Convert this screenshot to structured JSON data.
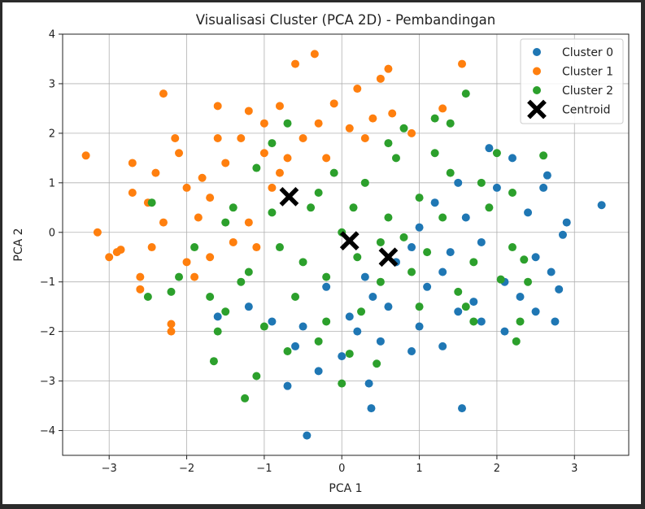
{
  "chart_data": {
    "type": "scatter",
    "title": "Visualisasi Cluster (PCA 2D) - Pembandingan",
    "xlabel": "PCA 1",
    "ylabel": "PCA 2",
    "xlim": [
      -3.6,
      3.7
    ],
    "ylim": [
      -4.5,
      4
    ],
    "xticks": [
      -3,
      -2,
      -1,
      0,
      1,
      2,
      3
    ],
    "yticks": [
      -4,
      -3,
      -2,
      -1,
      0,
      1,
      2,
      3,
      4
    ],
    "xtick_labels": [
      "−3",
      "−2",
      "−1",
      "0",
      "1",
      "2",
      "3"
    ],
    "ytick_labels": [
      "−4",
      "−3",
      "−2",
      "−1",
      "0",
      "1",
      "2",
      "3",
      "4"
    ],
    "grid": true,
    "legend_position": "top-right",
    "series": [
      {
        "name": "Cluster 0",
        "color": "#1f77b4",
        "points": [
          [
            0.7,
            -0.6
          ],
          [
            1.3,
            -0.8
          ],
          [
            1.8,
            -0.2
          ],
          [
            2.1,
            -1.0
          ],
          [
            2.5,
            -0.5
          ],
          [
            2.9,
            0.2
          ],
          [
            3.35,
            0.55
          ],
          [
            2.6,
            0.9
          ],
          [
            2.2,
            1.5
          ],
          [
            1.9,
            1.7
          ],
          [
            1.5,
            -1.6
          ],
          [
            1.0,
            -1.9
          ],
          [
            0.5,
            -2.2
          ],
          [
            0.0,
            -2.5
          ],
          [
            -0.3,
            -2.8
          ],
          [
            -0.7,
            -3.1
          ],
          [
            0.35,
            -3.05
          ],
          [
            0.38,
            -3.55
          ],
          [
            1.55,
            -3.55
          ],
          [
            -0.45,
            -4.1
          ],
          [
            -0.9,
            -1.8
          ],
          [
            -1.2,
            -1.5
          ],
          [
            -1.6,
            -1.7
          ],
          [
            2.7,
            -0.8
          ],
          [
            2.8,
            -1.15
          ],
          [
            2.75,
            -1.8
          ],
          [
            2.1,
            -2.0
          ],
          [
            1.3,
            -2.3
          ],
          [
            0.9,
            -2.4
          ],
          [
            2.4,
            0.4
          ],
          [
            2.0,
            0.9
          ],
          [
            1.6,
            0.3
          ],
          [
            1.2,
            0.6
          ],
          [
            0.9,
            -0.3
          ],
          [
            0.4,
            -1.3
          ],
          [
            0.1,
            -1.7
          ],
          [
            -0.2,
            -1.1
          ],
          [
            1.7,
            -1.4
          ],
          [
            2.3,
            -1.3
          ],
          [
            1.1,
            -1.1
          ],
          [
            0.6,
            -1.5
          ],
          [
            1.4,
            -0.4
          ],
          [
            2.65,
            1.15
          ],
          [
            2.85,
            -0.05
          ],
          [
            -0.5,
            -1.9
          ],
          [
            0.2,
            -2.0
          ],
          [
            1.8,
            -1.8
          ],
          [
            2.5,
            -1.6
          ],
          [
            1.0,
            0.1
          ],
          [
            1.5,
            1.0
          ],
          [
            0.3,
            -0.9
          ],
          [
            -0.6,
            -2.3
          ]
        ]
      },
      {
        "name": "Cluster 1",
        "color": "#ff7f0e",
        "points": [
          [
            -3.3,
            1.55
          ],
          [
            -3.15,
            0.0
          ],
          [
            -3.0,
            -0.5
          ],
          [
            -2.85,
            -0.35
          ],
          [
            -2.6,
            -0.9
          ],
          [
            -2.6,
            -1.15
          ],
          [
            -2.3,
            2.8
          ],
          [
            -2.2,
            -1.85
          ],
          [
            -2.2,
            -2.0
          ],
          [
            -2.5,
            0.6
          ],
          [
            -2.7,
            1.4
          ],
          [
            -2.4,
            1.2
          ],
          [
            -2.1,
            1.6
          ],
          [
            -2.0,
            0.9
          ],
          [
            -1.85,
            0.3
          ],
          [
            -1.6,
            2.55
          ],
          [
            -1.3,
            1.9
          ],
          [
            -1.2,
            2.45
          ],
          [
            -1.0,
            2.2
          ],
          [
            -0.8,
            2.55
          ],
          [
            -0.6,
            3.4
          ],
          [
            -0.35,
            3.6
          ],
          [
            -0.1,
            2.6
          ],
          [
            0.2,
            2.9
          ],
          [
            0.4,
            2.3
          ],
          [
            0.5,
            3.1
          ],
          [
            0.6,
            3.3
          ],
          [
            0.65,
            2.4
          ],
          [
            0.9,
            2.0
          ],
          [
            1.55,
            3.4
          ],
          [
            1.3,
            2.5
          ],
          [
            -1.7,
            -0.5
          ],
          [
            -1.4,
            -0.2
          ],
          [
            -2.0,
            -0.6
          ],
          [
            -2.3,
            0.2
          ],
          [
            -1.9,
            -0.9
          ],
          [
            -1.5,
            1.4
          ],
          [
            -1.0,
            1.6
          ],
          [
            -0.8,
            1.2
          ],
          [
            -0.5,
            1.9
          ],
          [
            -0.2,
            1.5
          ],
          [
            0.1,
            2.1
          ],
          [
            -2.9,
            -0.4
          ],
          [
            -1.7,
            0.7
          ],
          [
            -1.2,
            0.2
          ],
          [
            -2.45,
            -0.3
          ],
          [
            -2.7,
            0.8
          ],
          [
            -0.9,
            0.9
          ],
          [
            0.3,
            1.9
          ],
          [
            -1.6,
            1.9
          ],
          [
            -0.3,
            2.2
          ],
          [
            -1.1,
            -0.3
          ],
          [
            -2.15,
            1.9
          ],
          [
            -1.8,
            1.1
          ],
          [
            -0.7,
            1.5
          ]
        ]
      },
      {
        "name": "Cluster 2",
        "color": "#2ca02c",
        "points": [
          [
            -2.45,
            0.6
          ],
          [
            -2.5,
            -1.3
          ],
          [
            -1.6,
            -2.0
          ],
          [
            -1.65,
            -2.6
          ],
          [
            -1.25,
            -3.35
          ],
          [
            -1.1,
            -2.9
          ],
          [
            -0.3,
            -2.2
          ],
          [
            0.0,
            -3.05
          ],
          [
            0.1,
            -2.45
          ],
          [
            0.45,
            -2.65
          ],
          [
            1.7,
            -1.8
          ],
          [
            2.3,
            -1.8
          ],
          [
            2.25,
            -2.2
          ],
          [
            2.4,
            -1.0
          ],
          [
            2.6,
            1.55
          ],
          [
            2.0,
            1.6
          ],
          [
            1.6,
            2.8
          ],
          [
            1.4,
            2.2
          ],
          [
            1.2,
            2.3
          ],
          [
            0.8,
            2.1
          ],
          [
            -0.7,
            2.2
          ],
          [
            -0.9,
            1.8
          ],
          [
            -1.1,
            1.3
          ],
          [
            -1.4,
            0.5
          ],
          [
            -1.9,
            -0.3
          ],
          [
            -2.1,
            -0.9
          ],
          [
            -2.2,
            -1.2
          ],
          [
            -1.5,
            -1.6
          ],
          [
            -1.0,
            -1.9
          ],
          [
            -0.6,
            -1.3
          ],
          [
            -0.2,
            -0.9
          ],
          [
            0.2,
            -0.5
          ],
          [
            0.6,
            0.3
          ],
          [
            1.0,
            0.7
          ],
          [
            1.4,
            1.2
          ],
          [
            1.7,
            -0.6
          ],
          [
            1.9,
            0.5
          ],
          [
            2.2,
            0.8
          ],
          [
            2.2,
            -0.3
          ],
          [
            1.5,
            -1.2
          ],
          [
            1.0,
            -1.5
          ],
          [
            0.5,
            -1.0
          ],
          [
            0.0,
            0.0
          ],
          [
            -0.4,
            0.5
          ],
          [
            -0.8,
            -0.3
          ],
          [
            -1.2,
            -0.8
          ],
          [
            0.3,
            1.0
          ],
          [
            0.7,
            1.5
          ],
          [
            1.1,
            -0.4
          ],
          [
            1.3,
            0.3
          ],
          [
            -0.1,
            1.2
          ],
          [
            -0.5,
            -0.6
          ],
          [
            0.9,
            -0.8
          ],
          [
            1.8,
            1.0
          ],
          [
            2.35,
            -0.55
          ],
          [
            -1.7,
            -1.3
          ],
          [
            -1.3,
            -1.0
          ],
          [
            -0.7,
            -2.4
          ],
          [
            0.25,
            -1.6
          ],
          [
            1.6,
            -1.5
          ],
          [
            0.6,
            1.8
          ],
          [
            -0.2,
            -1.8
          ],
          [
            2.05,
            -0.95
          ],
          [
            0.15,
            0.5
          ],
          [
            -0.9,
            0.4
          ],
          [
            1.2,
            1.6
          ],
          [
            -1.5,
            0.2
          ],
          [
            0.8,
            -0.1
          ],
          [
            -0.3,
            0.8
          ],
          [
            0.5,
            -0.2
          ]
        ]
      }
    ],
    "centroid": {
      "name": "Centroid",
      "color": "#000000",
      "points": [
        [
          -0.68,
          0.72
        ],
        [
          0.1,
          -0.17
        ],
        [
          0.6,
          -0.5
        ]
      ]
    }
  }
}
